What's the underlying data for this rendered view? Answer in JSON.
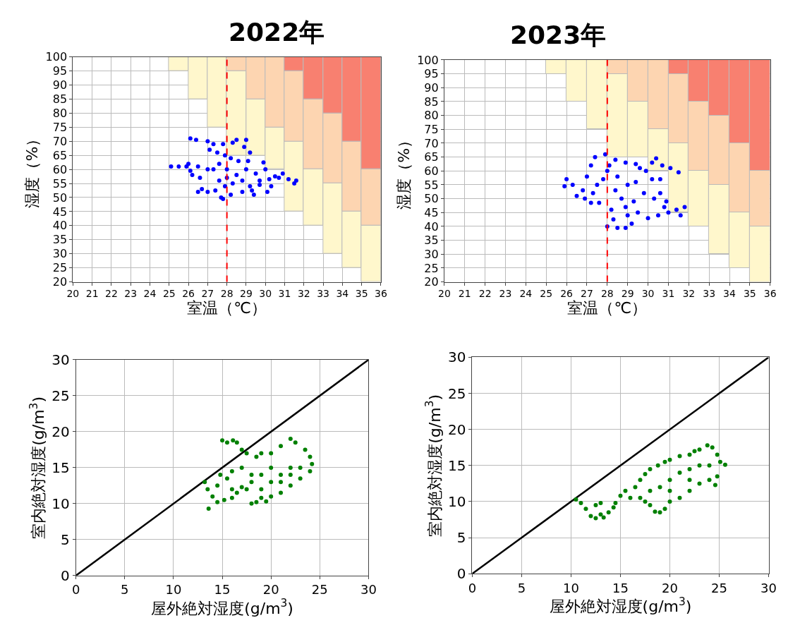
{
  "chart_data": [
    {
      "type": "scatter",
      "title": "2022年",
      "xlabel": "室温（℃）",
      "ylabel": "湿度（%）",
      "xlim": [
        20,
        36
      ],
      "ylim": [
        20,
        100
      ],
      "xticks": [
        20,
        21,
        22,
        23,
        24,
        25,
        26,
        27,
        28,
        29,
        30,
        31,
        32,
        33,
        34,
        35,
        36
      ],
      "yticks": [
        20,
        25,
        30,
        35,
        40,
        45,
        50,
        55,
        60,
        65,
        70,
        75,
        80,
        85,
        90,
        95,
        100
      ],
      "grid": true,
      "ref_lines": [
        {
          "axis": "x",
          "value": 28,
          "color": "#ff0000",
          "line_style": "dashed"
        }
      ],
      "series": [
        {
          "type": "bar",
          "color": "#fff7cc",
          "x": [
            25.5,
            26.5,
            27.5,
            28.5,
            29.5,
            30.5,
            31.5,
            32.5,
            33.5,
            34.5,
            35.5
          ],
          "base": [
            95,
            85,
            75,
            65,
            65,
            60,
            45,
            40,
            30,
            25,
            20
          ],
          "values": [
            5,
            15,
            25,
            30,
            20,
            15,
            25,
            20,
            25,
            20,
            20
          ]
        },
        {
          "type": "bar",
          "color": "#fdd5b1",
          "x": [
            28.5,
            29.5,
            30.5,
            31.5,
            32.5,
            33.5,
            34.5,
            35.5
          ],
          "base": [
            95,
            85,
            75,
            70,
            60,
            55,
            45,
            40
          ],
          "values": [
            5,
            15,
            25,
            25,
            25,
            25,
            25,
            20
          ]
        },
        {
          "type": "bar",
          "color": "#f88070",
          "x": [
            31.5,
            32.5,
            33.5,
            34.5,
            35.5
          ],
          "base": [
            95,
            85,
            80,
            70,
            60
          ],
          "values": [
            5,
            15,
            20,
            30,
            40
          ]
        },
        {
          "color": "#0000ff",
          "marker": "circle",
          "x": [
            25.1,
            25.5,
            25.9,
            26,
            26.2,
            26.1,
            26.6,
            26.7,
            26.5,
            27,
            27.4,
            27.7,
            27.8,
            28.2,
            28.8,
            29.2,
            29.7,
            30.2,
            30.7,
            31.2,
            31.6,
            30.5,
            29.4,
            27.1,
            27.5,
            27.9,
            26.1,
            26.4,
            27,
            27.3,
            27.8,
            28.3,
            28.5,
            29,
            28.9,
            29.2,
            29.1,
            29.9,
            30,
            28,
            28,
            28.5,
            29,
            29.5,
            28.3,
            27.6,
            27.3,
            27.6,
            28.6,
            28.2,
            29.7,
            30.3,
            30.9,
            31.5,
            27,
            26.5,
            28.8,
            27.9,
            29.3,
            30.1
          ],
          "values": [
            61,
            61,
            61,
            62,
            58,
            59.5,
            57,
            53,
            52,
            52,
            52.5,
            50,
            49.5,
            51,
            52,
            54,
            56,
            56.5,
            57,
            56.5,
            56,
            57.5,
            51,
            67,
            66,
            65,
            71,
            70.5,
            70,
            69,
            69,
            69.5,
            70.5,
            70.5,
            68,
            66,
            63,
            62.5,
            60,
            60,
            57,
            58,
            60,
            58.5,
            55,
            62,
            60,
            56,
            63,
            64,
            54.5,
            54,
            58.5,
            55,
            60,
            61,
            56,
            54,
            52.5,
            52
          ]
        }
      ]
    },
    {
      "type": "scatter",
      "title": "2023年",
      "xlabel": "室温（℃）",
      "ylabel": "湿度（%）",
      "xlim": [
        20,
        36
      ],
      "ylim": [
        20,
        100
      ],
      "xticks": [
        20,
        21,
        22,
        23,
        24,
        25,
        26,
        27,
        28,
        29,
        30,
        31,
        32,
        33,
        34,
        35,
        36
      ],
      "yticks": [
        20,
        25,
        30,
        35,
        40,
        45,
        50,
        55,
        60,
        65,
        70,
        75,
        80,
        85,
        90,
        95,
        100
      ],
      "grid": true,
      "ref_lines": [
        {
          "axis": "x",
          "value": 28,
          "color": "#ff0000",
          "line_style": "dashed"
        }
      ],
      "series": [
        {
          "type": "bar",
          "color": "#fff7cc",
          "x": [
            25.5,
            26.5,
            27.5,
            28.5,
            29.5,
            30.5,
            31.5,
            32.5,
            33.5,
            34.5,
            35.5
          ],
          "base": [
            95,
            85,
            75,
            65,
            65,
            60,
            45,
            40,
            30,
            25,
            20
          ],
          "values": [
            5,
            15,
            25,
            30,
            20,
            15,
            25,
            20,
            25,
            20,
            20
          ]
        },
        {
          "type": "bar",
          "color": "#fdd5b1",
          "x": [
            28.5,
            29.5,
            30.5,
            31.5,
            32.5,
            33.5,
            34.5,
            35.5
          ],
          "base": [
            95,
            85,
            75,
            70,
            60,
            55,
            45,
            40
          ],
          "values": [
            5,
            15,
            25,
            25,
            25,
            25,
            25,
            20
          ]
        },
        {
          "type": "bar",
          "color": "#f88070",
          "x": [
            31.5,
            32.5,
            33.5,
            34.5,
            35.5
          ],
          "base": [
            95,
            85,
            80,
            70,
            60
          ],
          "values": [
            5,
            15,
            20,
            30,
            40
          ]
        },
        {
          "color": "#0000ff",
          "marker": "circle",
          "x": [
            25.9,
            26,
            26.3,
            26.8,
            26.5,
            26.9,
            27.2,
            27.6,
            27.3,
            27,
            27.2,
            27.4,
            27.8,
            28,
            27.9,
            28,
            28.5,
            28.9,
            29.2,
            28.3,
            29,
            29.5,
            30,
            30.5,
            31,
            31.4,
            31.8,
            31.6,
            30.8,
            30.3,
            29.8,
            29.4,
            29.9,
            30.2,
            30.4,
            30.7,
            31.1,
            31.5,
            30.6,
            30.2,
            29.6,
            29.4,
            28.9,
            28.4,
            28.1,
            28.5,
            29,
            28.7,
            28.9,
            29.3,
            28.4,
            28.2,
            27.5,
            30.6,
            30.9
          ],
          "values": [
            54.5,
            57,
            55,
            53,
            51,
            50,
            48.5,
            48.5,
            52,
            58,
            62,
            65,
            57,
            60,
            66,
            40,
            39.5,
            39.5,
            41,
            42.5,
            44,
            45,
            43,
            44,
            45,
            46,
            47,
            44,
            47,
            50,
            52,
            56,
            60,
            63,
            64.5,
            62,
            61,
            59.5,
            57,
            57,
            61,
            62.5,
            63,
            64,
            62,
            58,
            55,
            50,
            47,
            49,
            53,
            46,
            55,
            52,
            49
          ]
        }
      ]
    },
    {
      "type": "scatter",
      "xlabel": "屋外絶対湿度(g/m$^{3}$)",
      "ylabel": "室内絶対湿度(g/m$^{3}$)",
      "xlim": [
        0,
        30
      ],
      "ylim": [
        0,
        30
      ],
      "xticks": [
        0,
        5,
        10,
        15,
        20,
        25,
        30
      ],
      "yticks": [
        0,
        5,
        10,
        15,
        20,
        25,
        30
      ],
      "grid": true,
      "series": [
        {
          "type": "line",
          "color": "#000000",
          "x": [
            0,
            30
          ],
          "values": [
            0,
            30
          ]
        },
        {
          "color": "#008000",
          "marker": "circle",
          "x": [
            13.6,
            13.2,
            13.5,
            14,
            14.5,
            15.2,
            16,
            16.5,
            17,
            17.5,
            18,
            18.5,
            19,
            19.5,
            20,
            21,
            22,
            23,
            24,
            24.2,
            24,
            23.5,
            22.5,
            22,
            21,
            20,
            19,
            18.5,
            17.5,
            17,
            16.5,
            16.1,
            15.5,
            15,
            14.8,
            15.5,
            16,
            17,
            18,
            19,
            20,
            21,
            22,
            23,
            19,
            20,
            21,
            22,
            18,
            14.5,
            16
          ],
          "values": [
            9.3,
            13,
            12,
            11,
            10.2,
            10.5,
            10.8,
            11.5,
            12.3,
            12,
            10,
            10.2,
            10.8,
            10.3,
            11,
            11.5,
            12.5,
            13.5,
            14.5,
            15.5,
            16.5,
            17.5,
            18.5,
            19,
            18,
            17,
            17,
            16.5,
            17,
            17.5,
            18.5,
            18.8,
            18.5,
            18.8,
            14,
            13.5,
            14.5,
            15,
            14,
            14,
            15,
            14,
            15,
            15,
            12,
            13,
            13,
            14,
            13,
            12.5,
            12
          ]
        }
      ]
    },
    {
      "type": "scatter",
      "xlabel": "屋外絶対湿度(g/m$^{3}$)",
      "ylabel": "室内絶対湿度(g/m$^{3}$)",
      "xlim": [
        0,
        30
      ],
      "ylim": [
        0,
        30
      ],
      "xticks": [
        0,
        5,
        10,
        15,
        20,
        25,
        30
      ],
      "yticks": [
        0,
        5,
        10,
        15,
        20,
        25,
        30
      ],
      "grid": true,
      "series": [
        {
          "type": "line",
          "color": "#000000",
          "x": [
            0,
            30
          ],
          "values": [
            0,
            30
          ]
        },
        {
          "color": "#008000",
          "marker": "circle",
          "x": [
            10.5,
            11,
            11.5,
            12,
            12.5,
            13,
            13.3,
            13.8,
            14.3,
            14.5,
            13,
            12.5,
            15,
            15.5,
            16,
            16.5,
            17,
            17.5,
            18,
            18.8,
            19.5,
            20,
            21,
            22,
            22.5,
            23,
            23.8,
            24.3,
            24.8,
            25.1,
            25.6,
            24.8,
            24.6,
            24,
            23,
            22,
            21,
            20,
            19.5,
            19,
            18.5,
            18,
            17.5,
            17,
            19,
            20,
            21,
            22,
            23,
            18,
            20,
            22,
            24
          ],
          "values": [
            10.3,
            9.8,
            9,
            8,
            7.7,
            8.2,
            7.8,
            8.5,
            9.2,
            9.8,
            9.8,
            9.5,
            10.8,
            11.5,
            10.5,
            12,
            13,
            13.8,
            14.5,
            15,
            15.5,
            15.8,
            16.3,
            16.5,
            17,
            17.2,
            17.8,
            17.5,
            16.5,
            15.5,
            15.1,
            13.5,
            12.3,
            13,
            12.5,
            11.5,
            10.5,
            10,
            9,
            8.5,
            8.6,
            9.5,
            10,
            10.5,
            12,
            13,
            14,
            14.5,
            15,
            11.5,
            11.5,
            13,
            15
          ]
        }
      ]
    }
  ]
}
